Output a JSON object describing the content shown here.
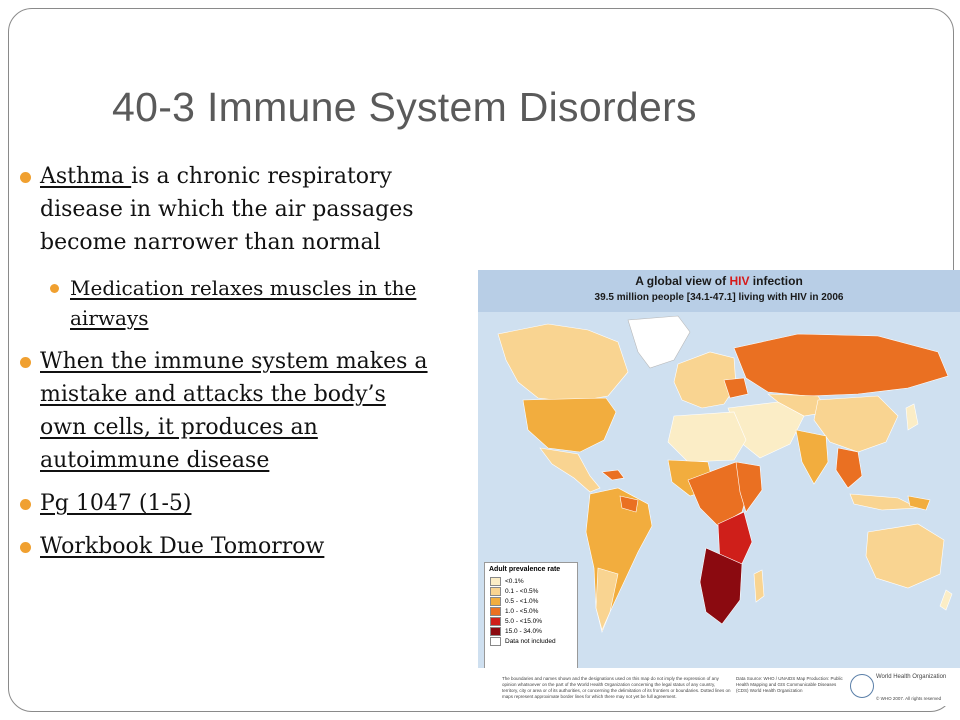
{
  "slide": {
    "title": "40-3 Immune System Disorders",
    "bullets": [
      {
        "underlined": "Asthma ",
        "text": "is a chronic respiratory disease in which the air passages become narrower than normal"
      },
      {
        "sub": "Medication relaxes muscles in the airways"
      },
      {
        "underlined": "When the immune system makes a mistake and attacks the body’s own cells, it produces an autoimmune disease"
      },
      {
        "underlined": "Pg 1047 (1-5)"
      },
      {
        "underlined": "Workbook Due Tomorrow"
      }
    ]
  },
  "map": {
    "title_prefix": "A global view of ",
    "title_highlight": "HIV",
    "title_suffix": " infection",
    "subtitle": "39.5 million people [34.1-47.1] living with HIV in 2006",
    "legend_title": "Adult prevalence rate",
    "legend": [
      {
        "label": "<0.1%",
        "color": "#fbedc6"
      },
      {
        "label": "0.1 - <0.5%",
        "color": "#f9d491"
      },
      {
        "label": "0.5 - <1.0%",
        "color": "#f2ad3e"
      },
      {
        "label": "1.0 - <5.0%",
        "color": "#ea7022"
      },
      {
        "label": "5.0 - <15.0%",
        "color": "#cf1f1a"
      },
      {
        "label": "15.0 - 34.0%",
        "color": "#8b0a10"
      },
      {
        "label": "Data not included",
        "color": "#ffffff"
      }
    ],
    "disclaimer": "The boundaries and names shown and the designations used on this map do not imply the expression of any opinion whatsoever on the part of the World Health Organization concerning the legal status of any country, territory, city or area or of its authorities, or concerning the delimitation of its frontiers or boundaries. Dotted lines on maps represent approximate border lines for which there may not yet be full agreement.",
    "source": "Data Source: WHO / UNAIDS Map Production: Public Health Mapping and GIS Communicable Diseases (CDS) World Health Organization",
    "org": "World Health Organization",
    "copyright": "© WHO 2007. All rights reserved"
  }
}
